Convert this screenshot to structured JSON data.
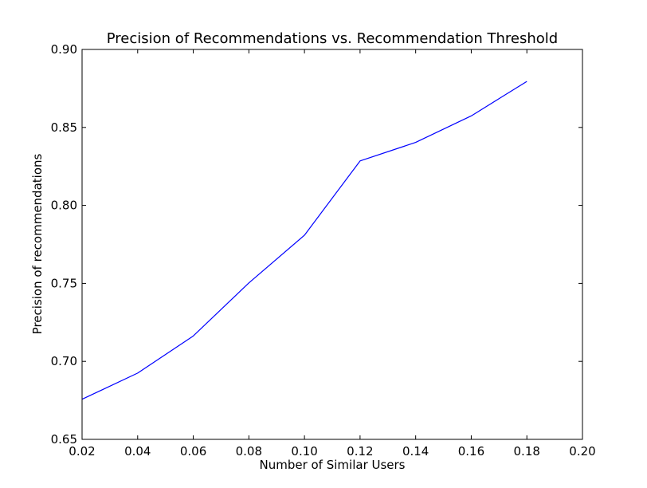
{
  "chart_data": {
    "type": "line",
    "title": "Precision of Recommendations vs. Recommendation Threshold",
    "xlabel": "Number of Similar Users",
    "ylabel": "Precision of recommendations",
    "xlim": [
      0.02,
      0.2
    ],
    "ylim": [
      0.65,
      0.9
    ],
    "x_ticks": [
      "0.02",
      "0.04",
      "0.06",
      "0.08",
      "0.10",
      "0.12",
      "0.14",
      "0.16",
      "0.18",
      "0.20"
    ],
    "y_ticks": [
      "0.65",
      "0.70",
      "0.75",
      "0.80",
      "0.85",
      "0.90"
    ],
    "grid": false,
    "series": [
      {
        "color": "#0000ff",
        "x": [
          0.02,
          0.04,
          0.06,
          0.08,
          0.1,
          0.12,
          0.14,
          0.16,
          0.18
        ],
        "values": [
          0.6757,
          0.6925,
          0.7163,
          0.7503,
          0.7809,
          0.8285,
          0.8404,
          0.8574,
          0.8795
        ]
      }
    ]
  }
}
